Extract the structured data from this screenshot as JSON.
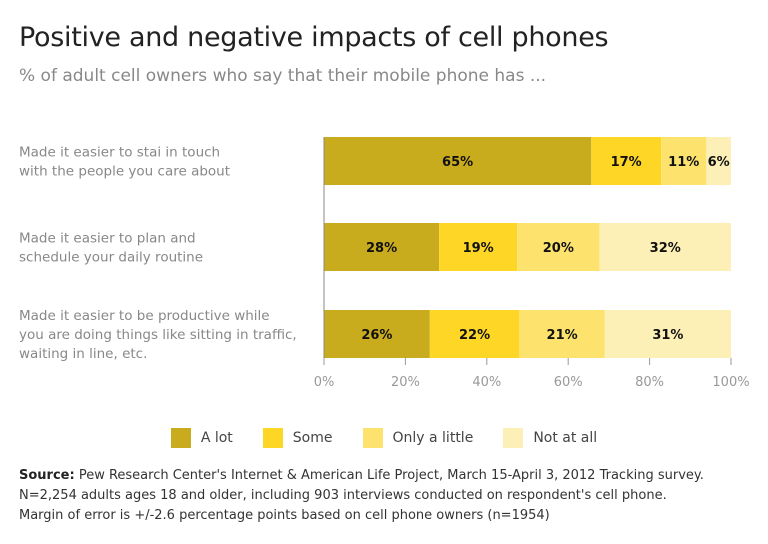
{
  "chart_data": {
    "type": "bar",
    "orientation": "horizontal",
    "stacked": true,
    "title": "Positive and negative impacts of cell phones",
    "subtitle": "% of adult cell owners who say that their mobile phone has ...",
    "categories": [
      [
        "Made it easier to stai in touch",
        "with the people you care about"
      ],
      [
        "Made it easier to plan and",
        "schedule your daily routine"
      ],
      [
        "Made it easier to be productive while",
        "you are doing things like sitting in traffic,",
        "waiting in line, etc."
      ]
    ],
    "series": [
      {
        "name": "A lot",
        "color": "#c9ab1e",
        "values": [
          65,
          28,
          26
        ]
      },
      {
        "name": "Some",
        "color": "#fdd626",
        "values": [
          17,
          19,
          22
        ]
      },
      {
        "name": "Only a little",
        "color": "#fde36e",
        "values": [
          11,
          20,
          21
        ]
      },
      {
        "name": "Not at all",
        "color": "#fdf0b7",
        "values": [
          6,
          32,
          31
        ]
      }
    ],
    "xlim": [
      0,
      100
    ],
    "xticks": [
      "0%",
      "20%",
      "40%",
      "60%",
      "80%",
      "100%"
    ],
    "grid": false,
    "legend": "bottom",
    "source_label": "Source:",
    "source": [
      "Pew Research Center's Internet & American Life Project, March 15-April 3, 2012 Tracking survey.",
      "N=2,254 adults ages 18 and older, including 903 interviews conducted on respondent's cell phone.",
      "Margin of error is +/-2.6 percentage points based on cell phone owners (n=1954)"
    ]
  }
}
